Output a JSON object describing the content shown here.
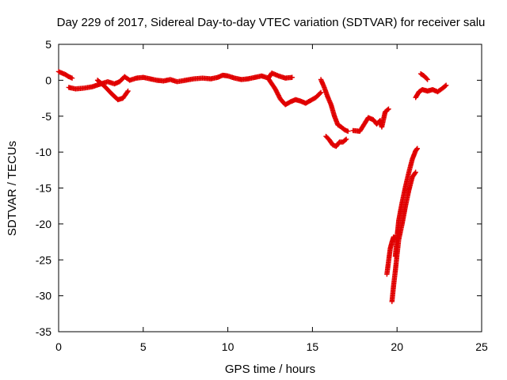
{
  "chart_data": {
    "type": "scatter",
    "title": "Day 229 of 2017, Sidereal Day-to-day VTEC variation (SDTVAR) for receiver salu",
    "xlabel": "GPS time / hours",
    "ylabel": "SDTVAR / TECUs",
    "xlim": [
      0,
      25
    ],
    "ylim": [
      -35,
      5
    ],
    "xticks": [
      "0",
      "5",
      "10",
      "15",
      "20",
      "25"
    ],
    "yticks": [
      "5",
      "0",
      "-5",
      "-10",
      "-15",
      "-20",
      "-25",
      "-30",
      "-35"
    ],
    "grid": false,
    "marker": "plus",
    "color": "#e00000",
    "segments": [
      [
        [
          0.0,
          1.2
        ],
        [
          0.2,
          1.0
        ],
        [
          0.4,
          0.8
        ],
        [
          0.6,
          0.5
        ],
        [
          0.8,
          0.3
        ]
      ],
      [
        [
          0.6,
          -1.0
        ],
        [
          1.0,
          -1.2
        ],
        [
          1.5,
          -1.1
        ],
        [
          2.0,
          -0.9
        ],
        [
          2.5,
          -0.5
        ],
        [
          2.9,
          -0.2
        ],
        [
          3.3,
          -0.5
        ],
        [
          3.6,
          -0.2
        ],
        [
          3.9,
          0.5
        ],
        [
          4.2,
          0.0
        ],
        [
          4.6,
          0.3
        ],
        [
          5.0,
          0.4
        ],
        [
          5.4,
          0.2
        ],
        [
          5.8,
          0.0
        ],
        [
          6.2,
          -0.1
        ],
        [
          6.6,
          0.1
        ],
        [
          7.0,
          -0.2
        ],
        [
          7.5,
          0.0
        ],
        [
          8.0,
          0.2
        ],
        [
          8.5,
          0.3
        ],
        [
          9.0,
          0.2
        ],
        [
          9.4,
          0.4
        ],
        [
          9.7,
          0.7
        ],
        [
          10.0,
          0.6
        ],
        [
          10.4,
          0.3
        ],
        [
          10.8,
          0.1
        ],
        [
          11.2,
          0.2
        ],
        [
          11.6,
          0.4
        ],
        [
          12.0,
          0.6
        ],
        [
          12.4,
          0.3
        ],
        [
          12.6,
          1.0
        ],
        [
          13.0,
          0.6
        ],
        [
          13.4,
          0.3
        ],
        [
          13.8,
          0.4
        ]
      ],
      [
        [
          2.3,
          0.0
        ],
        [
          2.7,
          -0.8
        ],
        [
          3.1,
          -1.8
        ],
        [
          3.5,
          -2.7
        ],
        [
          3.8,
          -2.5
        ],
        [
          4.1,
          -1.5
        ]
      ],
      [
        [
          12.4,
          0.2
        ],
        [
          12.8,
          -1.2
        ],
        [
          13.1,
          -2.6
        ],
        [
          13.4,
          -3.4
        ],
        [
          13.7,
          -3.0
        ],
        [
          14.0,
          -2.7
        ],
        [
          14.3,
          -2.9
        ],
        [
          14.6,
          -3.2
        ],
        [
          14.9,
          -2.8
        ],
        [
          15.2,
          -2.4
        ],
        [
          15.5,
          -1.7
        ]
      ],
      [
        [
          15.5,
          0.1
        ],
        [
          15.7,
          -1.0
        ],
        [
          15.9,
          -2.3
        ],
        [
          16.1,
          -3.4
        ],
        [
          16.3,
          -5.0
        ],
        [
          16.5,
          -6.2
        ],
        [
          16.7,
          -6.5
        ],
        [
          16.9,
          -6.9
        ],
        [
          17.1,
          -7.1
        ]
      ],
      [
        [
          15.8,
          -7.8
        ],
        [
          16.0,
          -8.3
        ],
        [
          16.2,
          -9.0
        ],
        [
          16.4,
          -9.2
        ],
        [
          16.6,
          -8.6
        ],
        [
          16.8,
          -8.6
        ],
        [
          17.0,
          -8.2
        ]
      ],
      [
        [
          17.4,
          -7.0
        ],
        [
          17.8,
          -7.1
        ],
        [
          18.3,
          -5.2
        ],
        [
          18.6,
          -5.5
        ],
        [
          18.8,
          -6.1
        ],
        [
          19.0,
          -5.6
        ],
        [
          19.1,
          -6.5
        ],
        [
          19.3,
          -4.4
        ],
        [
          19.5,
          -4.0
        ]
      ],
      [
        [
          19.4,
          -27.0
        ],
        [
          19.5,
          -25.2
        ],
        [
          19.6,
          -23.4
        ],
        [
          19.7,
          -22.5
        ],
        [
          19.8,
          -21.8
        ],
        [
          19.9,
          -22.0
        ]
      ],
      [
        [
          19.7,
          -30.8
        ],
        [
          19.8,
          -28.5
        ],
        [
          19.9,
          -26.5
        ],
        [
          20.0,
          -24.3
        ],
        [
          20.1,
          -22.2
        ],
        [
          20.3,
          -20.0
        ],
        [
          20.5,
          -17.5
        ],
        [
          20.7,
          -15.3
        ],
        [
          20.9,
          -13.5
        ],
        [
          21.1,
          -12.8
        ]
      ],
      [
        [
          19.9,
          -24.5
        ],
        [
          20.0,
          -21.8
        ],
        [
          20.1,
          -19.5
        ],
        [
          20.3,
          -17.0
        ],
        [
          20.5,
          -14.8
        ],
        [
          20.7,
          -12.8
        ],
        [
          20.9,
          -11.0
        ],
        [
          21.1,
          -9.8
        ],
        [
          21.2,
          -9.5
        ]
      ],
      [
        [
          21.1,
          -2.4
        ],
        [
          21.3,
          -1.6
        ],
        [
          21.5,
          -1.3
        ],
        [
          21.8,
          -1.5
        ],
        [
          22.1,
          -1.3
        ],
        [
          22.4,
          -1.6
        ],
        [
          22.7,
          -1.1
        ],
        [
          22.9,
          -0.7
        ]
      ],
      [
        [
          21.4,
          0.9
        ],
        [
          21.6,
          0.6
        ],
        [
          21.8,
          0.1
        ]
      ]
    ]
  }
}
